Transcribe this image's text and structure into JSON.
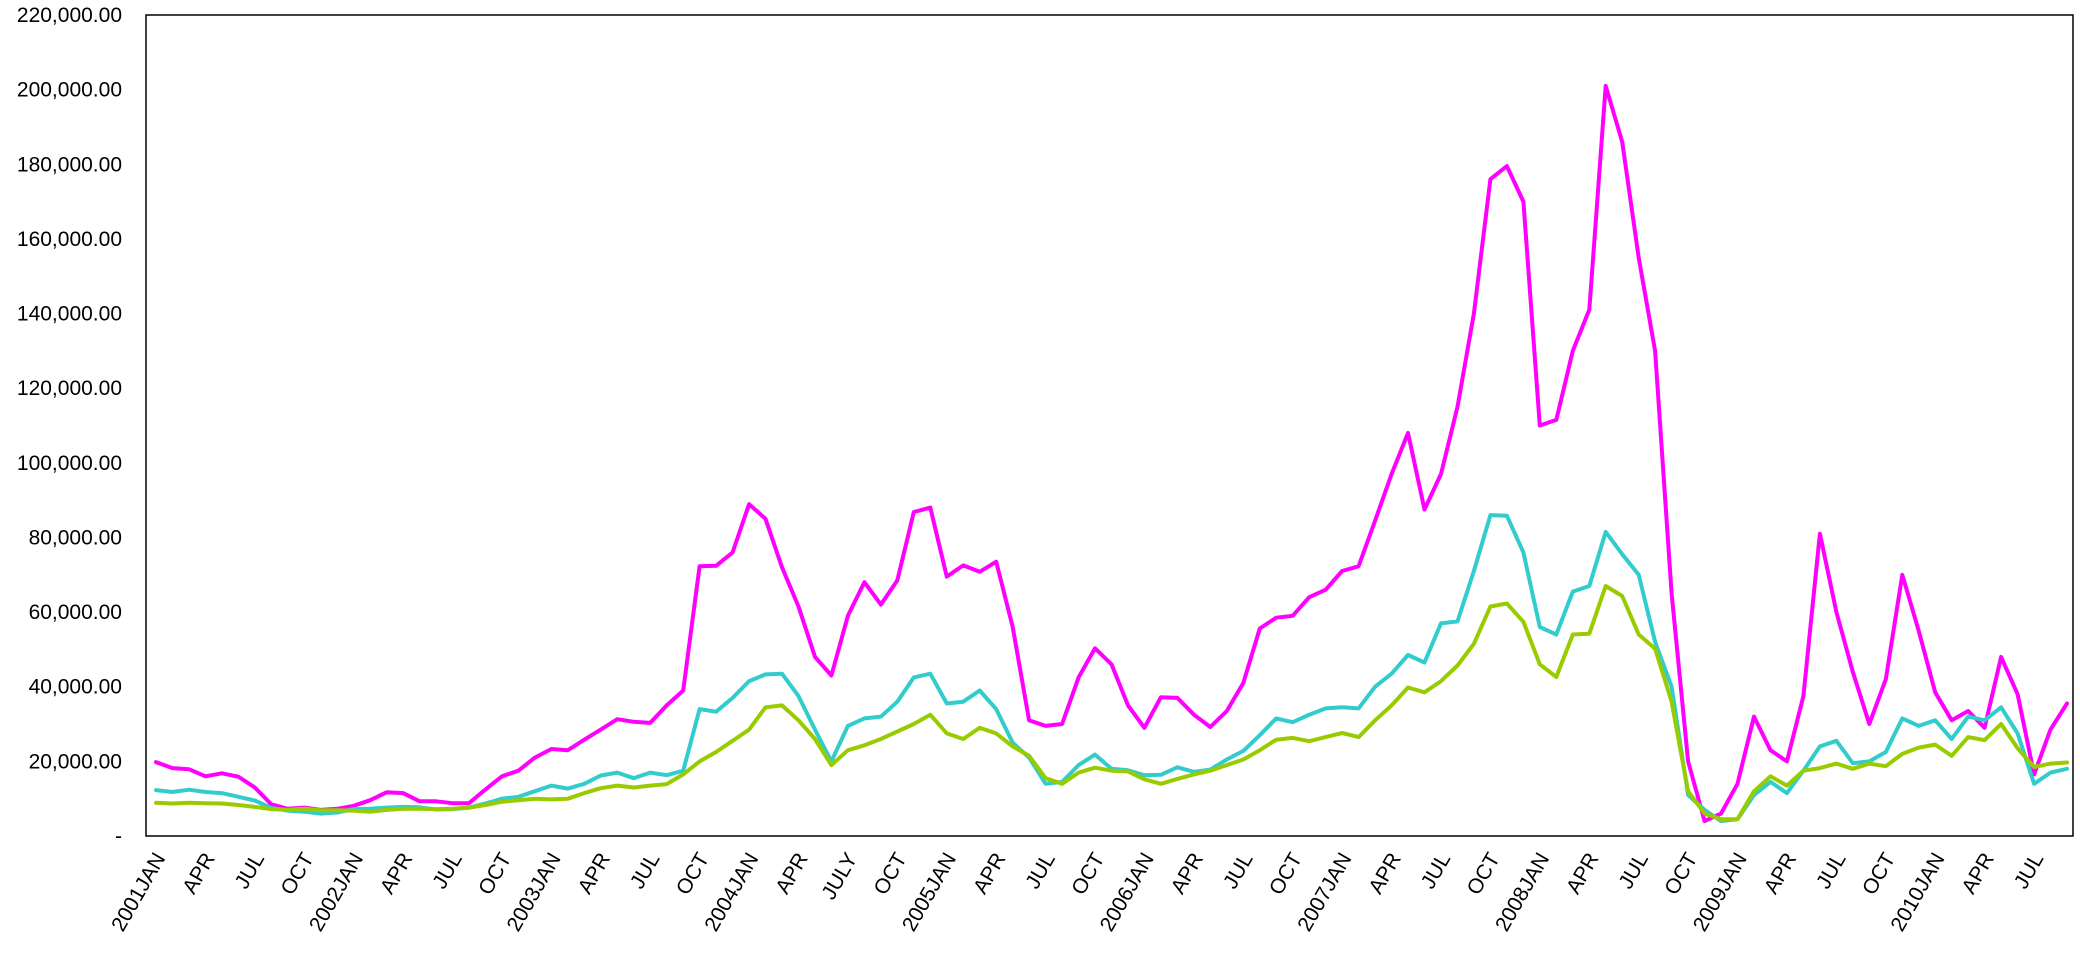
{
  "chart_data": {
    "type": "line",
    "title": "",
    "xlabel": "",
    "ylabel": "",
    "ylim": [
      0,
      220000
    ],
    "grid": false,
    "legend": "none",
    "yticks": [
      {
        "value": 0,
        "label": "-"
      },
      {
        "value": 20000,
        "label": "20,000.00"
      },
      {
        "value": 40000,
        "label": "40,000.00"
      },
      {
        "value": 60000,
        "label": "60,000.00"
      },
      {
        "value": 80000,
        "label": "80,000.00"
      },
      {
        "value": 100000,
        "label": "100,000.00"
      },
      {
        "value": 120000,
        "label": "120,000.00"
      },
      {
        "value": 140000,
        "label": "140,000.00"
      },
      {
        "value": 160000,
        "label": "160,000.00"
      },
      {
        "value": 180000,
        "label": "180,000.00"
      },
      {
        "value": 200000,
        "label": "200,000.00"
      },
      {
        "value": 220000,
        "label": "220,000.00"
      }
    ],
    "xticks": [
      {
        "index": 0,
        "label": "2001JAN"
      },
      {
        "index": 3,
        "label": "APR"
      },
      {
        "index": 6,
        "label": "JUL"
      },
      {
        "index": 9,
        "label": "OCT"
      },
      {
        "index": 12,
        "label": "2002JAN"
      },
      {
        "index": 15,
        "label": "APR"
      },
      {
        "index": 18,
        "label": "JUL"
      },
      {
        "index": 21,
        "label": "OCT"
      },
      {
        "index": 24,
        "label": "2003JAN"
      },
      {
        "index": 27,
        "label": "APR"
      },
      {
        "index": 30,
        "label": "JUL"
      },
      {
        "index": 33,
        "label": "OCT"
      },
      {
        "index": 36,
        "label": "2004JAN"
      },
      {
        "index": 39,
        "label": "APR"
      },
      {
        "index": 42,
        "label": "JULY"
      },
      {
        "index": 45,
        "label": "OCT"
      },
      {
        "index": 48,
        "label": "2005JAN"
      },
      {
        "index": 51,
        "label": "APR"
      },
      {
        "index": 54,
        "label": "JUL"
      },
      {
        "index": 57,
        "label": "OCT"
      },
      {
        "index": 60,
        "label": "2006JAN"
      },
      {
        "index": 63,
        "label": "APR"
      },
      {
        "index": 66,
        "label": "JUL"
      },
      {
        "index": 69,
        "label": "OCT"
      },
      {
        "index": 72,
        "label": "2007JAN"
      },
      {
        "index": 75,
        "label": "APR"
      },
      {
        "index": 78,
        "label": "JUL"
      },
      {
        "index": 81,
        "label": "OCT"
      },
      {
        "index": 84,
        "label": "2008JAN"
      },
      {
        "index": 87,
        "label": "APR"
      },
      {
        "index": 90,
        "label": "JUL"
      },
      {
        "index": 93,
        "label": "OCT"
      },
      {
        "index": 96,
        "label": "2009JAN"
      },
      {
        "index": 99,
        "label": "APR"
      },
      {
        "index": 102,
        "label": "JUL"
      },
      {
        "index": 105,
        "label": "OCT"
      },
      {
        "index": 108,
        "label": "2010JAN"
      },
      {
        "index": 111,
        "label": "APR"
      },
      {
        "index": 114,
        "label": "JUL"
      }
    ],
    "series": [
      {
        "color": "#ff00ff",
        "values": [
          19800,
          18200,
          17900,
          16000,
          16800,
          15900,
          13000,
          8500,
          7300,
          7600,
          7000,
          7300,
          8100,
          9600,
          11700,
          11500,
          9300,
          9300,
          8800,
          8800,
          12500,
          16000,
          17500,
          21000,
          23300,
          23000,
          25800,
          28500,
          31300,
          30600,
          30300,
          35000,
          39000,
          72300,
          72400,
          76000,
          88900,
          85000,
          72000,
          61500,
          48000,
          43000,
          59000,
          68000,
          62000,
          68500,
          86800,
          88000,
          69500,
          72500,
          70800,
          73500,
          56000,
          31000,
          29500,
          30000,
          42500,
          50300,
          46000,
          35000,
          29000,
          37200,
          37000,
          32500,
          29200,
          33500,
          41000,
          55600,
          58500,
          59000,
          64000,
          66000,
          71000,
          72300,
          84500,
          97000,
          108000,
          87500,
          97000,
          115000,
          140000,
          176000,
          179500,
          170000,
          110000,
          111500,
          130000,
          141000,
          201000,
          186000,
          155000,
          130000,
          65000,
          20000,
          4000,
          6000,
          14000,
          32000,
          23000,
          20000,
          37500,
          81000,
          60000,
          44000,
          30000,
          42000,
          70000,
          55000,
          38500,
          31000,
          33500,
          29000,
          48000,
          38000,
          16500,
          28500,
          35500
        ]
      },
      {
        "color": "#33cccc",
        "values": [
          12300,
          11800,
          12400,
          11800,
          11500,
          10500,
          9500,
          7500,
          6800,
          6500,
          6000,
          6300,
          7200,
          7300,
          7600,
          7800,
          7700,
          7100,
          7200,
          7600,
          8700,
          10000,
          10500,
          12000,
          13500,
          12700,
          14000,
          16200,
          17000,
          15500,
          17000,
          16300,
          17500,
          34000,
          33300,
          37000,
          41500,
          43300,
          43500,
          37500,
          28500,
          20000,
          29500,
          31500,
          32000,
          36000,
          42500,
          43500,
          35500,
          36000,
          39000,
          34000,
          25000,
          21000,
          14000,
          14500,
          19000,
          21800,
          18000,
          17600,
          16300,
          16400,
          18400,
          17200,
          17800,
          20500,
          22800,
          27000,
          31500,
          30500,
          32500,
          34200,
          34500,
          34200,
          40000,
          43500,
          48500,
          46500,
          57000,
          57500,
          71000,
          86000,
          85800,
          76000,
          56000,
          54000,
          65500,
          67000,
          81500,
          75500,
          70000,
          52000,
          40000,
          11000,
          7000,
          4000,
          4500,
          11000,
          14500,
          11500,
          17500,
          24000,
          25500,
          19500,
          20000,
          22500,
          31500,
          29500,
          31000,
          26000,
          32000,
          31000,
          34500,
          27500,
          14000,
          17000,
          18000
        ]
      },
      {
        "color": "#99cc00",
        "values": [
          8900,
          8700,
          8900,
          8800,
          8700,
          8300,
          7800,
          7200,
          7000,
          7300,
          6900,
          6900,
          6800,
          6500,
          7000,
          7300,
          7300,
          7200,
          7300,
          7600,
          8300,
          9200,
          9600,
          10000,
          9800,
          10000,
          11500,
          12800,
          13500,
          13000,
          13500,
          13900,
          16500,
          20000,
          22500,
          25500,
          28500,
          34500,
          35000,
          31000,
          26000,
          19000,
          23000,
          24300,
          26000,
          28000,
          30000,
          32500,
          27500,
          26000,
          29000,
          27500,
          24000,
          21500,
          15500,
          14000,
          17000,
          18300,
          17500,
          17300,
          15200,
          14000,
          15300,
          16500,
          17500,
          19000,
          20500,
          23000,
          25800,
          26300,
          25400,
          26500,
          27600,
          26500,
          31000,
          35000,
          39800,
          38500,
          41500,
          45700,
          51500,
          61500,
          62300,
          57400,
          46000,
          42600,
          54000,
          54200,
          67000,
          64300,
          54000,
          50200,
          36000,
          12000,
          6000,
          4500,
          4500,
          12000,
          16000,
          13500,
          17500,
          18200,
          19400,
          18000,
          19400,
          18700,
          22000,
          23700,
          24500,
          21500,
          26500,
          25700,
          30000,
          23500,
          18500,
          19400,
          19700
        ]
      }
    ]
  }
}
